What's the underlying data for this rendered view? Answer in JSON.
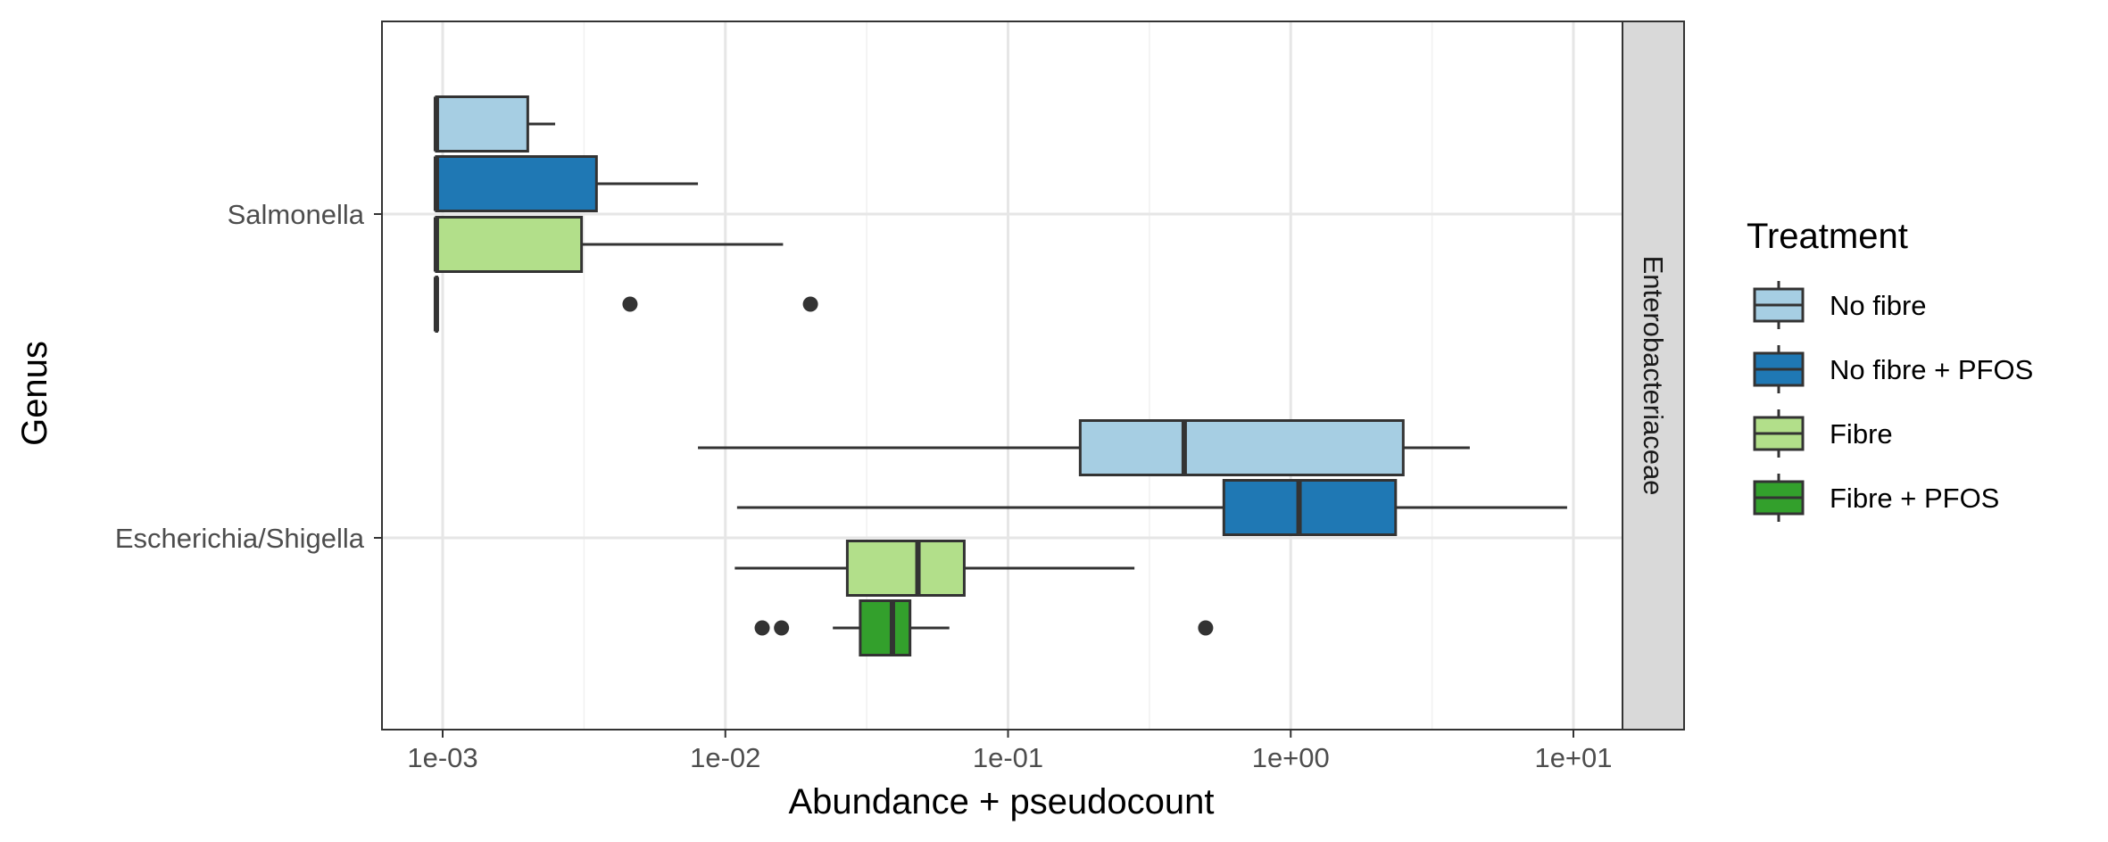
{
  "chart_data": {
    "type": "boxplot",
    "title": "",
    "xlabel": "Abundance + pseudocount",
    "ylabel": "Genus",
    "x_scale": "log10",
    "xlim": [
      0.00075,
      15
    ],
    "x_ticks": [
      "1e-03",
      "1e-02",
      "1e-01",
      "1e+00",
      "1e+01"
    ],
    "x_tick_values": [
      0.001,
      0.01,
      0.1,
      1,
      10
    ],
    "grid": true,
    "facet_label": "Enterobacteriaceae",
    "categories": [
      "Salmonella",
      "Escherichia/Shigella"
    ],
    "legend": {
      "title": "Treatment",
      "position": "right",
      "entries": [
        "No fibre",
        "No fibre + PFOS",
        "Fibre",
        "Fibre + PFOS"
      ]
    },
    "series": [
      {
        "name": "No fibre",
        "color": "#a6cee3"
      },
      {
        "name": "No fibre + PFOS",
        "color": "#1f78b4"
      },
      {
        "name": "Fibre",
        "color": "#b2df8a"
      },
      {
        "name": "Fibre + PFOS",
        "color": "#33a02c"
      }
    ],
    "boxes": [
      {
        "category": "Salmonella",
        "series": "No fibre",
        "whisker_low": 0.00095,
        "q1": 0.00095,
        "median": 0.00095,
        "q3": 0.002,
        "whisker_high": 0.0025,
        "outliers": []
      },
      {
        "category": "Salmonella",
        "series": "No fibre + PFOS",
        "whisker_low": 0.00095,
        "q1": 0.00095,
        "median": 0.00095,
        "q3": 0.0035,
        "whisker_high": 0.008,
        "outliers": []
      },
      {
        "category": "Salmonella",
        "series": "Fibre",
        "whisker_low": 0.00095,
        "q1": 0.00095,
        "median": 0.00095,
        "q3": 0.0031,
        "whisker_high": 0.016,
        "outliers": []
      },
      {
        "category": "Salmonella",
        "series": "Fibre + PFOS",
        "whisker_low": 0.00095,
        "q1": 0.00095,
        "median": 0.00095,
        "q3": 0.00095,
        "whisker_high": 0.00095,
        "outliers": [
          0.0046,
          0.02
        ]
      },
      {
        "category": "Escherichia/Shigella",
        "series": "No fibre",
        "whisker_low": 0.008,
        "q1": 0.18,
        "median": 0.42,
        "q3": 2.5,
        "whisker_high": 4.3,
        "outliers": []
      },
      {
        "category": "Escherichia/Shigella",
        "series": "No fibre + PFOS",
        "whisker_low": 0.011,
        "q1": 0.58,
        "median": 1.07,
        "q3": 2.35,
        "whisker_high": 9.5,
        "outliers": []
      },
      {
        "category": "Escherichia/Shigella",
        "series": "Fibre",
        "whisker_low": 0.0108,
        "q1": 0.027,
        "median": 0.048,
        "q3": 0.07,
        "whisker_high": 0.28,
        "outliers": []
      },
      {
        "category": "Escherichia/Shigella",
        "series": "Fibre + PFOS",
        "whisker_low": 0.024,
        "q1": 0.03,
        "median": 0.039,
        "q3": 0.045,
        "whisker_high": 0.062,
        "outliers": [
          0.0135,
          0.0158,
          0.5
        ]
      }
    ]
  }
}
